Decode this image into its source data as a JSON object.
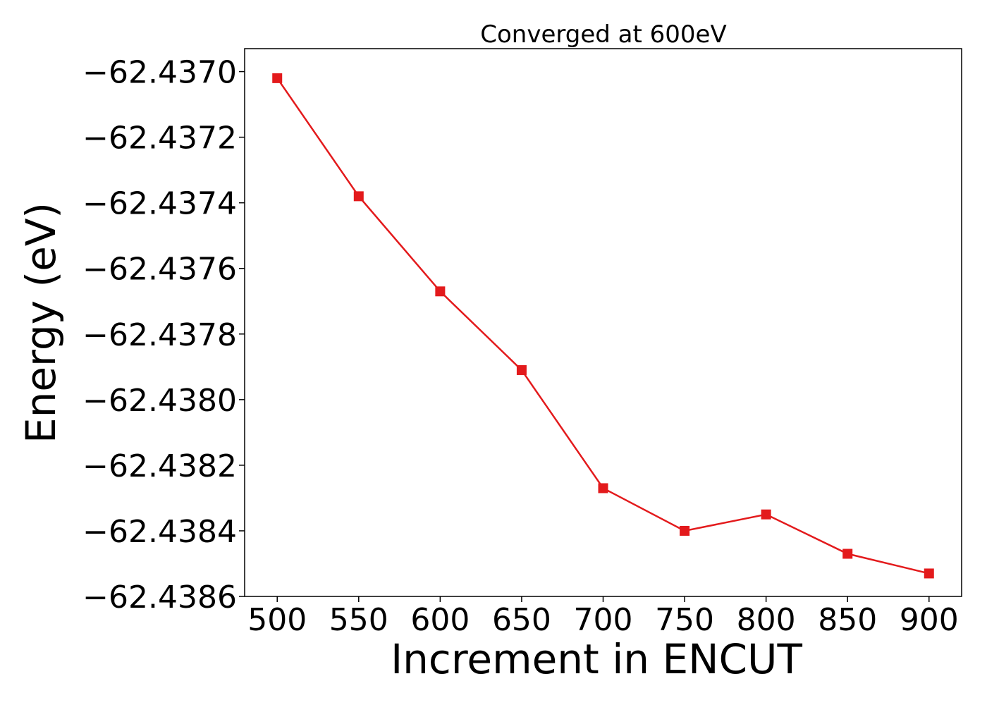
{
  "chart_data": {
    "type": "line",
    "title": "Converged at 600eV",
    "xlabel": "Increment in ENCUT",
    "ylabel": "Energy (eV)",
    "x": [
      500,
      550,
      600,
      650,
      700,
      750,
      800,
      850,
      900
    ],
    "xticks": [
      500,
      550,
      600,
      650,
      700,
      750,
      800,
      850,
      900
    ],
    "xtick_labels": [
      "500",
      "550",
      "600",
      "650",
      "700",
      "750",
      "800",
      "850",
      "900"
    ],
    "yticks": [
      -62.437,
      -62.4372,
      -62.4374,
      -62.4376,
      -62.4378,
      -62.438,
      -62.4382,
      -62.4384,
      -62.4386
    ],
    "ytick_labels": [
      "−62.4370",
      "−62.4372",
      "−62.4374",
      "−62.4376",
      "−62.4378",
      "−62.4380",
      "−62.4382",
      "−62.4384",
      "−62.4386"
    ],
    "xlim": [
      480,
      920
    ],
    "ylim": [
      -62.4386,
      -62.43693
    ],
    "series": [
      {
        "color": "#e31a1c",
        "marker": "square",
        "values": [
          -62.43702,
          -62.43738,
          -62.43767,
          -62.43791,
          -62.43827,
          -62.4384,
          -62.43835,
          -62.43847,
          -62.43853
        ]
      }
    ],
    "grid": false,
    "legend": "none"
  }
}
